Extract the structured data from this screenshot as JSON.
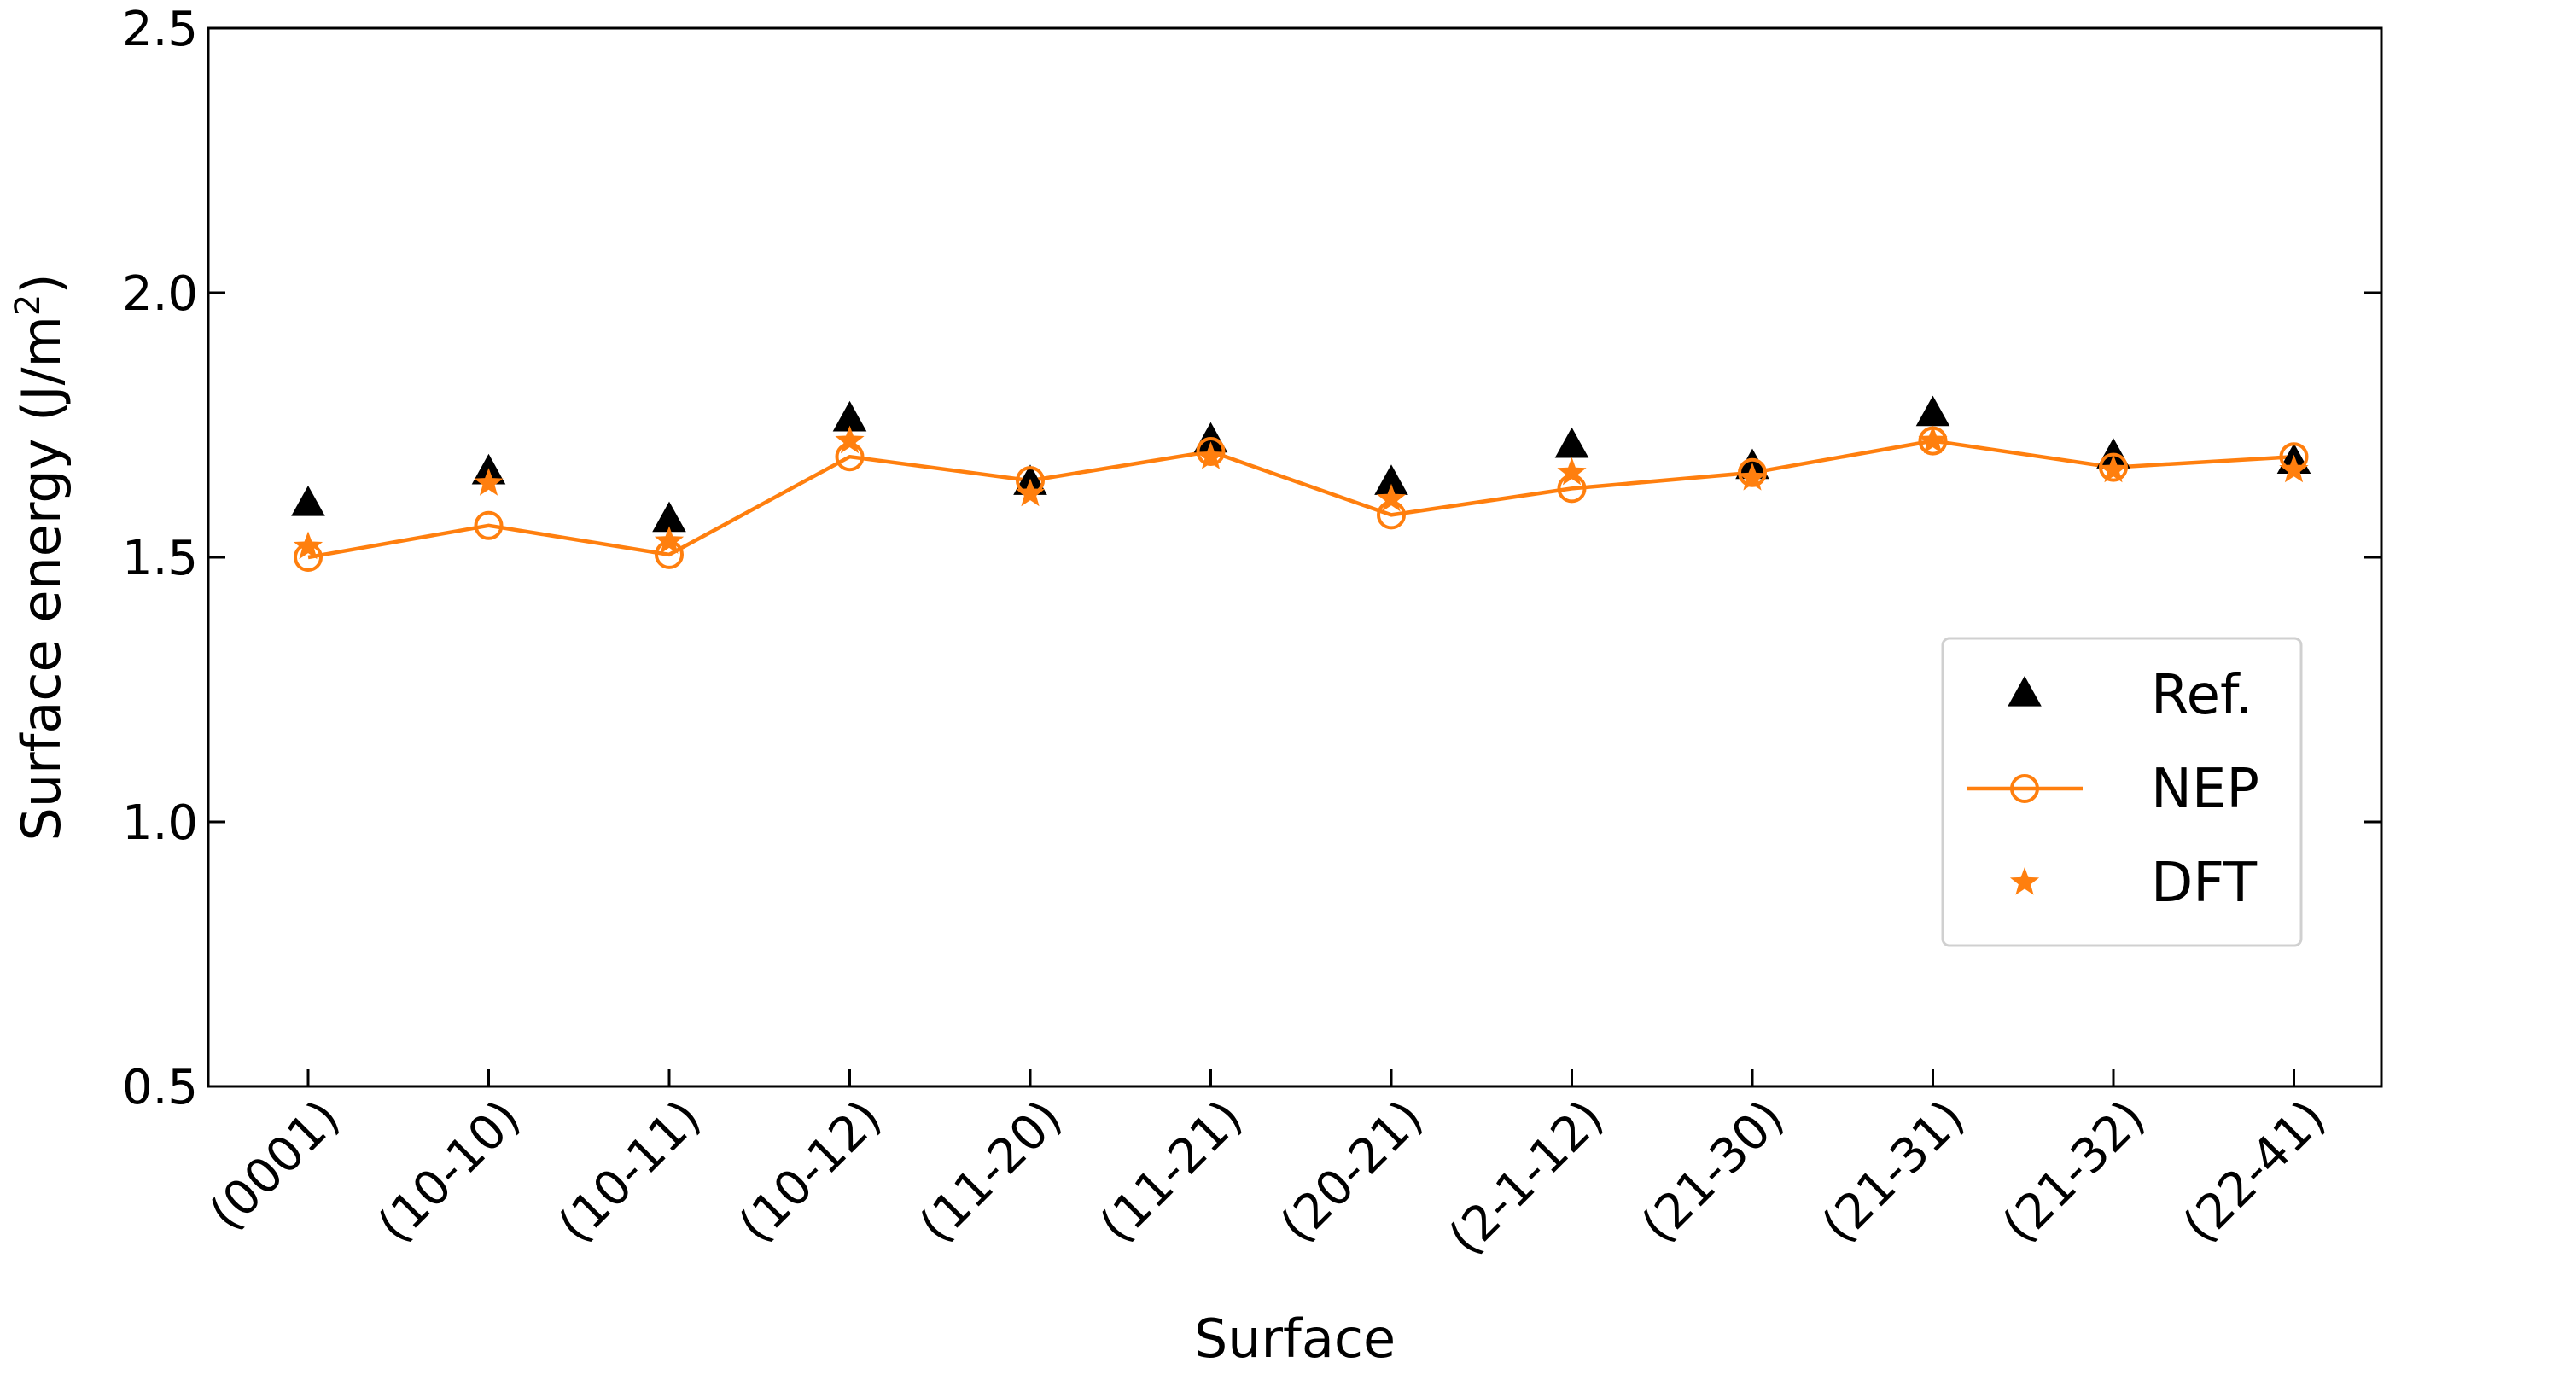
{
  "chart_data": {
    "type": "scatter",
    "title": "",
    "xlabel": "Surface",
    "ylabel": "Surface energy (J/m",
    "ylabel_superscript": "2",
    "ylabel_suffix": ")",
    "categories": [
      "(0001)",
      "(10-10)",
      "(10-11)",
      "(10-12)",
      "(11-20)",
      "(11-21)",
      "(20-21)",
      "(2-1-12)",
      "(21-30)",
      "(21-31)",
      "(21-32)",
      "(22-41)"
    ],
    "ylim": [
      0.5,
      2.5
    ],
    "yticks": [
      "0.5",
      "1.0",
      "1.5",
      "2.0",
      "2.5"
    ],
    "grid": false,
    "legend_position": "center-right",
    "series": [
      {
        "name": "Ref.",
        "marker": "triangle",
        "line": false,
        "color": "#000000",
        "values": [
          1.6,
          1.66,
          1.57,
          1.76,
          1.64,
          1.72,
          1.64,
          1.71,
          1.67,
          1.77,
          1.69,
          1.68
        ]
      },
      {
        "name": "NEP",
        "marker": "circle-open",
        "line": true,
        "color": "#ff7f0e",
        "values": [
          1.5,
          1.56,
          1.505,
          1.69,
          1.645,
          1.7,
          1.58,
          1.63,
          1.66,
          1.72,
          1.67,
          1.69
        ]
      },
      {
        "name": "DFT",
        "marker": "star",
        "line": false,
        "color": "#ff7f0e",
        "values": [
          1.52,
          1.64,
          1.53,
          1.72,
          1.62,
          1.69,
          1.61,
          1.66,
          1.65,
          1.72,
          1.665,
          1.665
        ]
      }
    ]
  }
}
